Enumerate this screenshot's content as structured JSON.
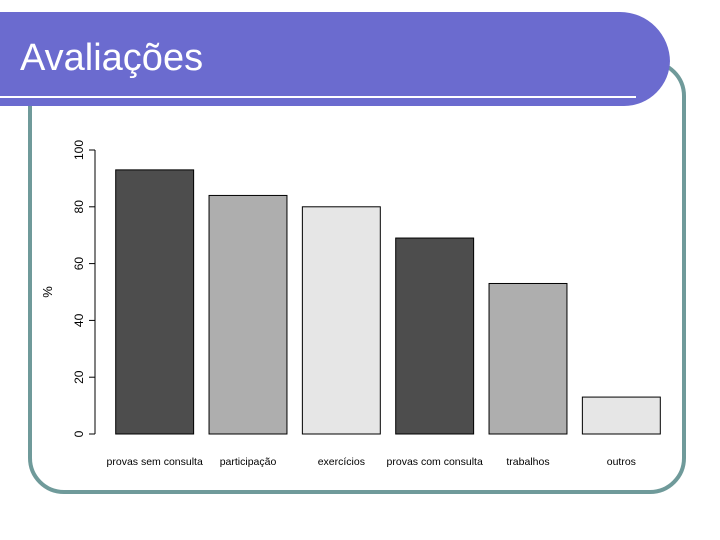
{
  "slide": {
    "title": "Avaliações",
    "colors": {
      "banner": "#6b6bcf",
      "banner_line": "#ffffff",
      "frame": "#6f9a9a",
      "axis": "#000000"
    }
  },
  "chart_data": {
    "type": "bar",
    "categories": [
      "provas sem consulta",
      "participação",
      "exercícios",
      "provas com consulta",
      "trabalhos",
      "outros"
    ],
    "values": [
      93,
      84,
      80,
      69,
      53,
      13
    ],
    "bar_colors": [
      "#4d4d4d",
      "#aeaeae",
      "#e6e6e6",
      "#4d4d4d",
      "#aeaeae",
      "#e6e6e6"
    ],
    "title": "",
    "xlabel": "",
    "ylabel": "%",
    "ylim": [
      0,
      100
    ],
    "yticks": [
      0,
      20,
      40,
      60,
      80,
      100
    ],
    "grid": false,
    "legend": "none"
  }
}
